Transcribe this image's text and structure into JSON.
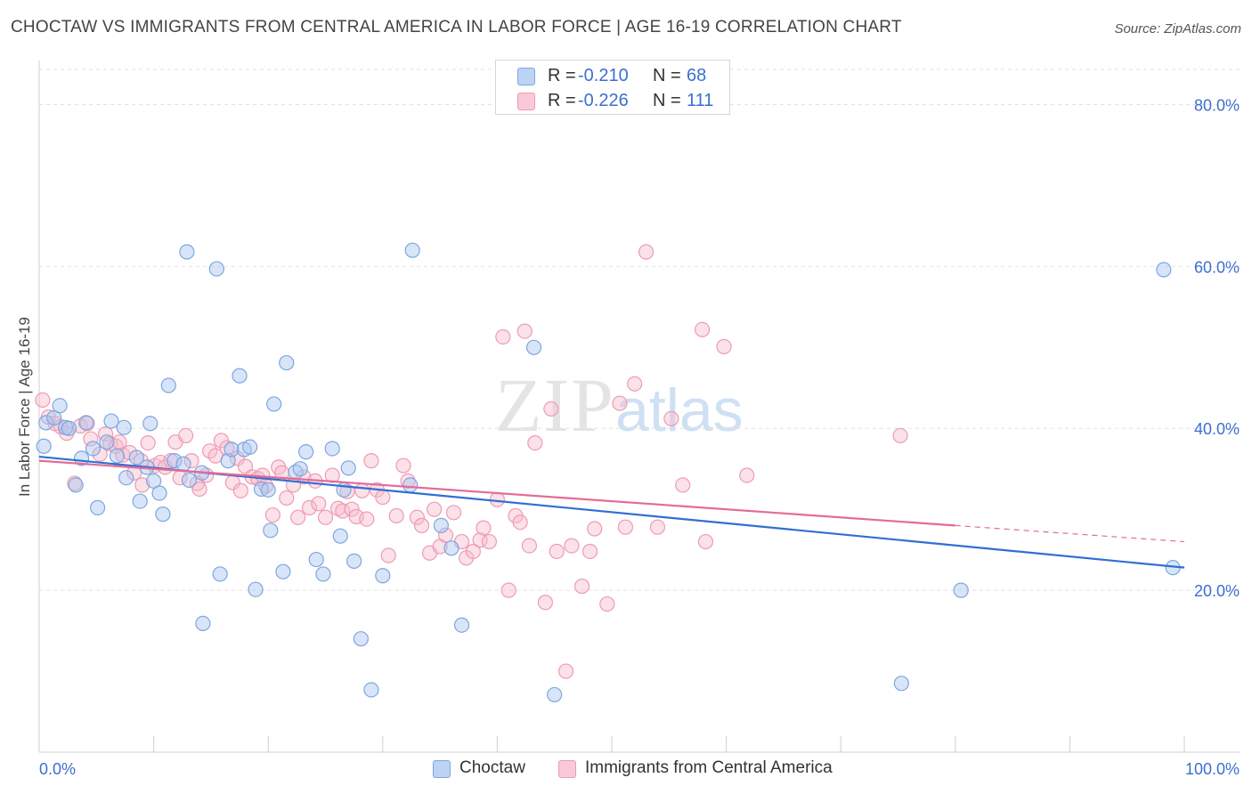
{
  "header": {
    "title": "CHOCTAW VS IMMIGRANTS FROM CENTRAL AMERICA IN LABOR FORCE | AGE 16-19 CORRELATION CHART",
    "source": "Source: ZipAtlas.com"
  },
  "watermark": {
    "zip": "ZIP",
    "atlas": "atlas"
  },
  "legend": {
    "rows": [
      {
        "r_label": "R =",
        "r_value": "-0.210",
        "n_label": "N =",
        "n_value": "68"
      },
      {
        "r_label": "R =",
        "r_value": "-0.226",
        "n_label": "N =",
        "n_value": "111"
      }
    ]
  },
  "bottom_legend": {
    "series_a": "Choctaw",
    "series_b": "Immigrants from Central America"
  },
  "colors": {
    "choctaw_fill": "#a9c6f0",
    "choctaw_stroke": "#7ea6e0",
    "choctaw_line": "#2f6fd4",
    "immig_fill": "#f7bccd",
    "immig_stroke": "#ef9ab4",
    "immig_line": "#e46b96",
    "tick_text": "#3b6fd1",
    "grid": "#e2e2e2"
  },
  "chart_data": {
    "type": "scatter",
    "title": "CHOCTAW VS IMMIGRANTS FROM CENTRAL AMERICA IN LABOR FORCE | AGE 16-19 CORRELATION CHART",
    "xlabel": "",
    "ylabel": "In Labor Force | Age 16-19",
    "xlim": [
      0,
      100
    ],
    "ylim": [
      0,
      85
    ],
    "x_tick_labels": [
      "0.0%",
      "100.0%"
    ],
    "y_ticks": [
      20,
      40,
      60,
      80
    ],
    "y_tick_labels": [
      "20.0%",
      "40.0%",
      "60.0%",
      "80.0%"
    ],
    "grid": true,
    "legend_position": "top-center",
    "series": [
      {
        "name": "Choctaw",
        "r": -0.21,
        "n": 68,
        "trend": {
          "x0": 0,
          "y0": 36.5,
          "x1": 100,
          "y1": 22.8
        },
        "points": [
          [
            0.4,
            37.8
          ],
          [
            0.6,
            40.7
          ],
          [
            1.3,
            41.3
          ],
          [
            1.8,
            42.8
          ],
          [
            2.3,
            40.1
          ],
          [
            2.6,
            40.0
          ],
          [
            3.2,
            33.0
          ],
          [
            3.7,
            36.3
          ],
          [
            4.1,
            40.7
          ],
          [
            4.7,
            37.5
          ],
          [
            5.1,
            30.2
          ],
          [
            5.9,
            38.3
          ],
          [
            6.3,
            40.9
          ],
          [
            6.8,
            36.6
          ],
          [
            7.4,
            40.1
          ],
          [
            7.6,
            33.9
          ],
          [
            8.5,
            36.4
          ],
          [
            8.8,
            31.0
          ],
          [
            9.4,
            35.2
          ],
          [
            9.7,
            40.6
          ],
          [
            10.0,
            33.5
          ],
          [
            10.5,
            32.0
          ],
          [
            10.8,
            29.4
          ],
          [
            11.3,
            45.3
          ],
          [
            11.8,
            36.0
          ],
          [
            12.6,
            35.6
          ],
          [
            12.9,
            61.8
          ],
          [
            13.1,
            33.6
          ],
          [
            14.2,
            34.5
          ],
          [
            14.3,
            15.9
          ],
          [
            15.5,
            59.7
          ],
          [
            15.8,
            22.0
          ],
          [
            16.5,
            36.0
          ],
          [
            16.8,
            37.4
          ],
          [
            17.5,
            46.5
          ],
          [
            17.9,
            37.4
          ],
          [
            18.4,
            37.7
          ],
          [
            18.9,
            20.1
          ],
          [
            19.4,
            32.5
          ],
          [
            20.0,
            32.4
          ],
          [
            20.2,
            27.4
          ],
          [
            20.5,
            43.0
          ],
          [
            21.3,
            22.3
          ],
          [
            21.6,
            48.1
          ],
          [
            22.4,
            34.6
          ],
          [
            22.8,
            35.0
          ],
          [
            23.3,
            37.1
          ],
          [
            24.2,
            23.8
          ],
          [
            24.8,
            22.0
          ],
          [
            25.6,
            37.5
          ],
          [
            26.3,
            26.7
          ],
          [
            26.6,
            32.4
          ],
          [
            27.0,
            35.1
          ],
          [
            27.5,
            23.6
          ],
          [
            28.1,
            14.0
          ],
          [
            29.0,
            7.7
          ],
          [
            30.0,
            21.8
          ],
          [
            32.4,
            33.0
          ],
          [
            32.6,
            62.0
          ],
          [
            35.1,
            28.0
          ],
          [
            36.0,
            25.2
          ],
          [
            36.9,
            15.7
          ],
          [
            43.2,
            50.0
          ],
          [
            45.0,
            7.1
          ],
          [
            75.3,
            8.5
          ],
          [
            80.5,
            20.0
          ],
          [
            98.2,
            59.6
          ],
          [
            99.0,
            22.8
          ]
        ]
      },
      {
        "name": "Immigrants from Central America",
        "r": -0.226,
        "n": 111,
        "trend": {
          "x0": 0,
          "y0": 36.0,
          "x1": 80,
          "y1": 28.0,
          "dash_x1": 100,
          "dash_y1": 26.0
        },
        "points": [
          [
            0.3,
            43.5
          ],
          [
            0.8,
            41.4
          ],
          [
            1.4,
            40.6
          ],
          [
            1.9,
            40.2
          ],
          [
            2.4,
            39.4
          ],
          [
            3.1,
            33.2
          ],
          [
            3.6,
            40.3
          ],
          [
            4.2,
            40.6
          ],
          [
            4.5,
            38.7
          ],
          [
            5.3,
            36.8
          ],
          [
            5.8,
            39.3
          ],
          [
            6.2,
            38.1
          ],
          [
            6.7,
            37.8
          ],
          [
            7.0,
            38.3
          ],
          [
            7.3,
            36.7
          ],
          [
            7.9,
            37.0
          ],
          [
            8.3,
            34.5
          ],
          [
            8.9,
            36.0
          ],
          [
            9.0,
            33.0
          ],
          [
            9.5,
            38.2
          ],
          [
            10.1,
            35.4
          ],
          [
            10.6,
            35.8
          ],
          [
            11.0,
            35.2
          ],
          [
            11.5,
            36.0
          ],
          [
            11.9,
            38.3
          ],
          [
            12.3,
            33.9
          ],
          [
            12.8,
            39.1
          ],
          [
            13.3,
            36.0
          ],
          [
            13.8,
            33.2
          ],
          [
            14.0,
            32.5
          ],
          [
            14.6,
            34.2
          ],
          [
            14.9,
            37.2
          ],
          [
            15.4,
            36.6
          ],
          [
            15.9,
            38.5
          ],
          [
            16.4,
            37.6
          ],
          [
            16.9,
            33.3
          ],
          [
            17.3,
            36.3
          ],
          [
            17.6,
            32.3
          ],
          [
            18.0,
            35.3
          ],
          [
            18.6,
            34.0
          ],
          [
            19.1,
            33.8
          ],
          [
            19.5,
            34.2
          ],
          [
            19.8,
            32.9
          ],
          [
            20.4,
            29.3
          ],
          [
            20.9,
            35.2
          ],
          [
            21.2,
            34.5
          ],
          [
            21.6,
            31.4
          ],
          [
            22.2,
            33.0
          ],
          [
            22.6,
            29.0
          ],
          [
            23.1,
            34.0
          ],
          [
            23.6,
            30.2
          ],
          [
            24.1,
            33.5
          ],
          [
            24.4,
            30.7
          ],
          [
            25.0,
            29.0
          ],
          [
            25.6,
            34.2
          ],
          [
            26.1,
            30.1
          ],
          [
            26.5,
            29.8
          ],
          [
            26.9,
            32.2
          ],
          [
            27.3,
            30.0
          ],
          [
            27.7,
            29.1
          ],
          [
            28.2,
            32.3
          ],
          [
            28.6,
            28.8
          ],
          [
            29.0,
            36.0
          ],
          [
            29.5,
            32.4
          ],
          [
            30.0,
            31.5
          ],
          [
            30.5,
            24.3
          ],
          [
            31.2,
            29.2
          ],
          [
            31.8,
            35.4
          ],
          [
            32.2,
            33.5
          ],
          [
            33.0,
            29.0
          ],
          [
            33.4,
            28.0
          ],
          [
            34.1,
            24.6
          ],
          [
            34.5,
            30.0
          ],
          [
            35.0,
            25.4
          ],
          [
            35.5,
            26.8
          ],
          [
            36.2,
            29.6
          ],
          [
            36.9,
            26.0
          ],
          [
            37.3,
            24.0
          ],
          [
            37.9,
            24.8
          ],
          [
            38.5,
            26.2
          ],
          [
            38.8,
            27.7
          ],
          [
            39.3,
            26.0
          ],
          [
            40.0,
            31.2
          ],
          [
            40.5,
            51.3
          ],
          [
            41.0,
            20.0
          ],
          [
            41.6,
            29.2
          ],
          [
            42.0,
            28.4
          ],
          [
            42.4,
            52.0
          ],
          [
            42.8,
            25.5
          ],
          [
            43.3,
            38.2
          ],
          [
            44.2,
            18.5
          ],
          [
            44.7,
            42.4
          ],
          [
            45.2,
            24.8
          ],
          [
            46.0,
            10.0
          ],
          [
            46.5,
            25.5
          ],
          [
            47.4,
            20.5
          ],
          [
            48.1,
            24.8
          ],
          [
            48.5,
            27.6
          ],
          [
            49.6,
            18.3
          ],
          [
            50.7,
            43.1
          ],
          [
            51.2,
            27.8
          ],
          [
            52.0,
            45.5
          ],
          [
            53.0,
            61.8
          ],
          [
            54.0,
            27.8
          ],
          [
            55.2,
            41.2
          ],
          [
            56.2,
            33.0
          ],
          [
            58.2,
            26.0
          ],
          [
            59.8,
            50.1
          ],
          [
            61.8,
            34.2
          ],
          [
            75.2,
            39.1
          ],
          [
            57.9,
            52.2
          ]
        ]
      }
    ]
  }
}
